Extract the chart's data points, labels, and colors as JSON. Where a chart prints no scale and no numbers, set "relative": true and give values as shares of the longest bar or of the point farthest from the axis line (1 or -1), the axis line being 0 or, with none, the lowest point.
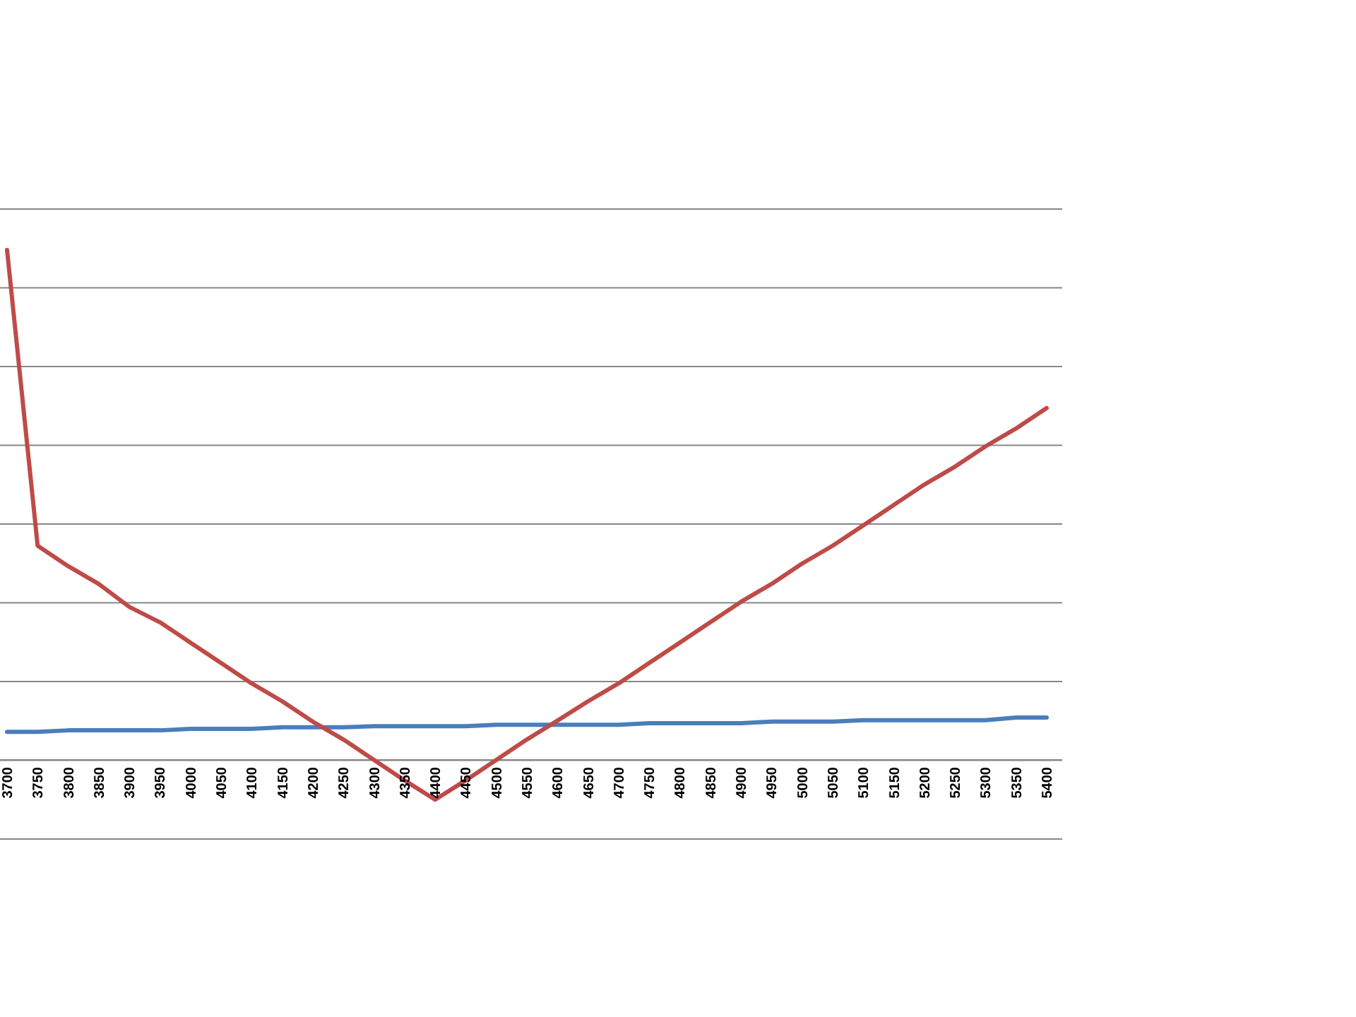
{
  "chart_data": {
    "type": "line",
    "relative": true,
    "grid": true,
    "marker": "none",
    "line_style": "solid",
    "categories": [
      "3700",
      "3750",
      "3800",
      "3850",
      "3900",
      "3950",
      "4000",
      "4050",
      "4100",
      "4150",
      "4200",
      "4250",
      "4300",
      "4350",
      "4400",
      "4450",
      "4500",
      "4550",
      "4600",
      "4650",
      "4700",
      "4750",
      "4800",
      "4850",
      "4900",
      "4950",
      "5000",
      "5050",
      "5100",
      "5150",
      "5200",
      "5250",
      "5300",
      "5350",
      "5400"
    ],
    "series": [
      {
        "color": "#4a7ebb",
        "values": [
          0.055,
          0.055,
          0.058,
          0.058,
          0.058,
          0.058,
          0.061,
          0.061,
          0.061,
          0.064,
          0.064,
          0.064,
          0.066,
          0.066,
          0.066,
          0.066,
          0.069,
          0.069,
          0.069,
          0.069,
          0.069,
          0.072,
          0.072,
          0.072,
          0.072,
          0.075,
          0.075,
          0.075,
          0.078,
          0.078,
          0.078,
          0.078,
          0.078,
          0.083,
          0.083
        ]
      },
      {
        "color": "#be4b48",
        "values": [
          1,
          0.42,
          0.38,
          0.345,
          0.3,
          0.27,
          0.23,
          0.19,
          0.15,
          0.115,
          0.075,
          0.04,
          0,
          -0.04,
          -0.078,
          -0.04,
          0,
          0.04,
          0.077,
          0.115,
          0.15,
          0.19,
          0.23,
          0.27,
          0.31,
          0.345,
          0.385,
          0.42,
          0.46,
          0.5,
          0.54,
          0.575,
          0.615,
          0.65,
          0.69
        ]
      }
    ]
  }
}
